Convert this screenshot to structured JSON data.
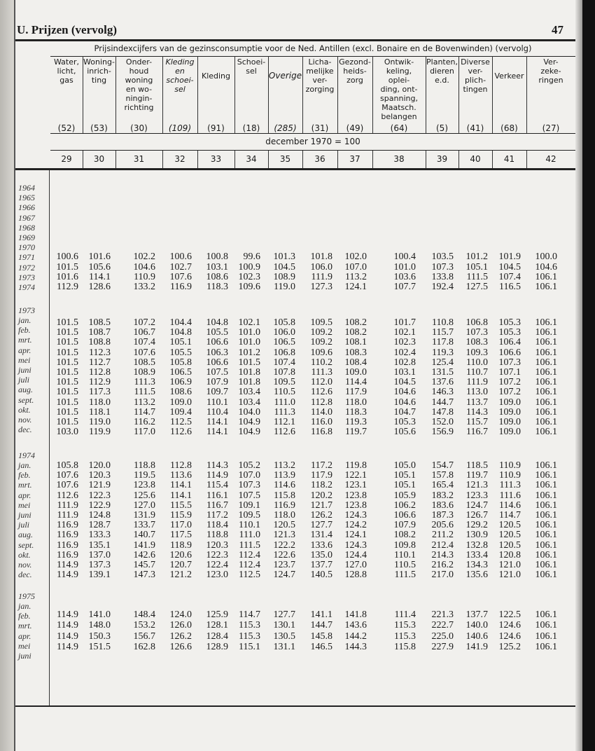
{
  "page": {
    "section_title": "U. Prijzen (vervolg)",
    "page_number": "47"
  },
  "table": {
    "title": "Prijsindexcijfers van de gezinsconsumptie voor de Ned. Antillen (excl. Bonaire en de Bovenwinden) (vervolg)",
    "basis": "december 1970 = 100",
    "columns": [
      {
        "label": "Water,\nlicht,\ngas",
        "weight": "(52)",
        "number": "29",
        "italic": false
      },
      {
        "label": "Woning-\ninrich-\nting",
        "weight": "(53)",
        "number": "30",
        "italic": false
      },
      {
        "label": "Onder-\nhoud\nwoning\nen wo-\nningin-\nrichting",
        "weight": "(30)",
        "number": "31",
        "italic": false
      },
      {
        "label": "Kleding\nen\nschoei-\nsel",
        "weight": "(109)",
        "number": "32",
        "italic": true
      },
      {
        "label": "Kleding",
        "weight": "(91)",
        "number": "33",
        "italic": false
      },
      {
        "label": "Schoei-\nsel",
        "weight": "(18)",
        "number": "34",
        "italic": false
      },
      {
        "label": "Overige",
        "weight": "(285)",
        "number": "35",
        "italic": true
      },
      {
        "label": "Licha-\nmelijke\nver-\nzorging",
        "weight": "(31)",
        "number": "36",
        "italic": false
      },
      {
        "label": "Gezond-\nheids-\nzorg",
        "weight": "(49)",
        "number": "37",
        "italic": false
      },
      {
        "label": "Ontwik-\nkeling,\noplei-\nding, ont-\nspanning,\nMaatsch.\nbelangen",
        "weight": "(64)",
        "number": "38",
        "italic": false
      },
      {
        "label": "Planten,\ndieren\ne.d.",
        "weight": "(5)",
        "number": "39",
        "italic": false
      },
      {
        "label": "Diverse\nver-\nplich-\ntingen",
        "weight": "(41)",
        "number": "40",
        "italic": false
      },
      {
        "label": "Verkeer",
        "weight": "(68)",
        "number": "41",
        "italic": false
      },
      {
        "label": "Ver-\nzeke-\nringen",
        "weight": "(27)",
        "number": "42",
        "italic": false
      }
    ],
    "annual": {
      "labels": [
        "1964",
        "1965",
        "1966",
        "1967",
        "1968",
        "1969",
        "1970",
        "1971",
        "1972",
        "1973",
        "1974"
      ],
      "rows": [
        [],
        [],
        [],
        [],
        [],
        [],
        [],
        [
          "100.6",
          "101.6",
          "102.2",
          "100.6",
          "100.8",
          "99.6",
          "101.3",
          "101.8",
          "102.0",
          "100.4",
          "103.5",
          "101.2",
          "101.9",
          "100.0"
        ],
        [
          "101.5",
          "105.6",
          "104.6",
          "102.7",
          "103.1",
          "100.9",
          "104.5",
          "106.0",
          "107.0",
          "101.0",
          "107.3",
          "105.1",
          "104.5",
          "104.6"
        ],
        [
          "101.6",
          "114.1",
          "110.9",
          "107.6",
          "108.6",
          "102.3",
          "108.9",
          "111.9",
          "113.2",
          "103.6",
          "133.8",
          "111.5",
          "107.4",
          "106.1"
        ],
        [
          "112.9",
          "128.6",
          "133.2",
          "116.9",
          "118.3",
          "109.6",
          "119.0",
          "127.3",
          "124.1",
          "107.7",
          "192.4",
          "127.5",
          "116.5",
          "106.1"
        ]
      ]
    },
    "monthly": [
      {
        "year": "1973",
        "months": [
          "jan.",
          "feb.",
          "mrt.",
          "apr.",
          "mei",
          "juni",
          "juli",
          "aug.",
          "sept.",
          "okt.",
          "nov.",
          "dec."
        ],
        "rows": [
          [
            "101.5",
            "108.5",
            "107.2",
            "104.4",
            "104.8",
            "102.1",
            "105.8",
            "109.5",
            "108.2",
            "101.7",
            "110.8",
            "106.8",
            "105.3",
            "106.1"
          ],
          [
            "101.5",
            "108.7",
            "106.7",
            "104.8",
            "105.5",
            "101.0",
            "106.0",
            "109.2",
            "108.2",
            "102.1",
            "115.7",
            "107.3",
            "105.3",
            "106.1"
          ],
          [
            "101.5",
            "108.8",
            "107.4",
            "105.1",
            "106.6",
            "101.0",
            "106.5",
            "109.2",
            "108.1",
            "102.3",
            "117.8",
            "108.3",
            "106.4",
            "106.1"
          ],
          [
            "101.5",
            "112.3",
            "107.6",
            "105.5",
            "106.3",
            "101.2",
            "106.8",
            "109.6",
            "108.3",
            "102.4",
            "119.3",
            "109.3",
            "106.6",
            "106.1"
          ],
          [
            "101.5",
            "112.7",
            "108.5",
            "105.8",
            "106.6",
            "101.5",
            "107.4",
            "110.2",
            "108.4",
            "102.8",
            "125.4",
            "110.0",
            "107.3",
            "106.1"
          ],
          [
            "101.5",
            "112.8",
            "108.9",
            "106.5",
            "107.5",
            "101.8",
            "107.8",
            "111.3",
            "109.0",
            "103.1",
            "131.5",
            "110.7",
            "107.1",
            "106.1"
          ],
          [
            "101.5",
            "112.9",
            "111.3",
            "106.9",
            "107.9",
            "101.8",
            "109.5",
            "112.0",
            "114.4",
            "104.5",
            "137.6",
            "111.9",
            "107.2",
            "106.1"
          ],
          [
            "101.5",
            "117.3",
            "111.5",
            "108.6",
            "109.7",
            "103.4",
            "110.5",
            "112.6",
            "117.9",
            "104.6",
            "146.3",
            "113.0",
            "107.2",
            "106.1"
          ],
          [
            "101.5",
            "118.0",
            "113.2",
            "109.0",
            "110.1",
            "103.4",
            "111.0",
            "112.8",
            "118.0",
            "104.6",
            "144.7",
            "113.7",
            "109.0",
            "106.1"
          ],
          [
            "101.5",
            "118.1",
            "114.7",
            "109.4",
            "110.4",
            "104.0",
            "111.3",
            "114.0",
            "118.3",
            "104.7",
            "147.8",
            "114.3",
            "109.0",
            "106.1"
          ],
          [
            "101.5",
            "119.0",
            "116.2",
            "112.5",
            "114.1",
            "104.9",
            "112.1",
            "116.0",
            "119.3",
            "105.3",
            "152.0",
            "115.7",
            "109.0",
            "106.1"
          ],
          [
            "103.0",
            "119.9",
            "117.0",
            "112.6",
            "114.1",
            "104.9",
            "112.6",
            "116.8",
            "119.7",
            "105.6",
            "156.9",
            "116.7",
            "109.0",
            "106.1"
          ]
        ]
      },
      {
        "year": "1974",
        "months": [
          "jan.",
          "feb.",
          "mrt.",
          "apr.",
          "mei",
          "juni",
          "juli",
          "aug.",
          "sept.",
          "okt.",
          "nov.",
          "dec."
        ],
        "rows": [
          [
            "105.8",
            "120.0",
            "118.8",
            "112.8",
            "114.3",
            "105.2",
            "113.2",
            "117.2",
            "119.8",
            "105.0",
            "154.7",
            "118.5",
            "110.9",
            "106.1"
          ],
          [
            "107.6",
            "120.3",
            "119.5",
            "113.6",
            "114.9",
            "107.0",
            "113.9",
            "117.9",
            "122.1",
            "105.1",
            "157.8",
            "119.7",
            "110.9",
            "106.1"
          ],
          [
            "107.6",
            "121.9",
            "123.8",
            "114.1",
            "115.4",
            "107.3",
            "114.6",
            "118.2",
            "123.1",
            "105.1",
            "165.4",
            "121.3",
            "111.3",
            "106.1"
          ],
          [
            "112.6",
            "122.3",
            "125.6",
            "114.1",
            "116.1",
            "107.5",
            "115.8",
            "120.2",
            "123.8",
            "105.9",
            "183.2",
            "123.3",
            "111.6",
            "106.1"
          ],
          [
            "111.9",
            "122.9",
            "127.0",
            "115.5",
            "116.7",
            "109.1",
            "116.9",
            "121.7",
            "123.8",
            "106.2",
            "183.6",
            "124.7",
            "114.6",
            "106.1"
          ],
          [
            "111.9",
            "124.8",
            "131.9",
            "115.9",
            "117.2",
            "109.5",
            "118.0",
            "126.2",
            "124.3",
            "106.6",
            "187.3",
            "126.7",
            "114.7",
            "106.1"
          ],
          [
            "116.9",
            "128.7",
            "133.7",
            "117.0",
            "118.4",
            "110.1",
            "120.5",
            "127.7",
            "124.2",
            "107.9",
            "205.6",
            "129.2",
            "120.5",
            "106.1"
          ],
          [
            "116.9",
            "133.3",
            "140.7",
            "117.5",
            "118.8",
            "111.0",
            "121.3",
            "131.4",
            "124.1",
            "108.2",
            "211.2",
            "130.9",
            "120.5",
            "106.1"
          ],
          [
            "116.9",
            "135.1",
            "141.9",
            "118.9",
            "120.3",
            "111.5",
            "122.2",
            "133.6",
            "124.3",
            "109.8",
            "212.4",
            "132.8",
            "120.5",
            "106.1"
          ],
          [
            "116.9",
            "137.0",
            "142.6",
            "120.6",
            "122.3",
            "112.4",
            "122.6",
            "135.0",
            "124.4",
            "110.1",
            "214.3",
            "133.4",
            "120.8",
            "106.1"
          ],
          [
            "114.9",
            "137.3",
            "145.7",
            "120.7",
            "122.4",
            "112.4",
            "123.7",
            "137.7",
            "127.0",
            "110.5",
            "216.2",
            "134.3",
            "121.0",
            "106.1"
          ],
          [
            "114.9",
            "139.1",
            "147.3",
            "121.2",
            "123.0",
            "112.5",
            "124.7",
            "140.5",
            "128.8",
            "111.5",
            "217.0",
            "135.6",
            "121.0",
            "106.1"
          ]
        ]
      },
      {
        "year": "1975",
        "months": [
          "jan.",
          "feb.",
          "mrt.",
          "apr.",
          "mei",
          "juni"
        ],
        "rows": [
          [
            "114.9",
            "141.0",
            "148.4",
            "124.0",
            "125.9",
            "114.7",
            "127.7",
            "141.1",
            "141.8",
            "111.4",
            "221.3",
            "137.7",
            "122.5",
            "106.1"
          ],
          [
            "114.9",
            "148.0",
            "153.2",
            "126.0",
            "128.1",
            "115.3",
            "130.1",
            "144.7",
            "143.6",
            "115.3",
            "222.7",
            "140.0",
            "124.6",
            "106.1"
          ],
          [
            "114.9",
            "150.3",
            "156.7",
            "126.2",
            "128.4",
            "115.3",
            "130.5",
            "145.8",
            "144.2",
            "115.3",
            "225.0",
            "140.6",
            "124.6",
            "106.1"
          ],
          [
            "114.9",
            "151.5",
            "162.8",
            "126.6",
            "128.9",
            "115.1",
            "131.1",
            "146.5",
            "144.3",
            "115.8",
            "227.9",
            "141.9",
            "125.2",
            "106.1"
          ]
        ]
      }
    ]
  }
}
